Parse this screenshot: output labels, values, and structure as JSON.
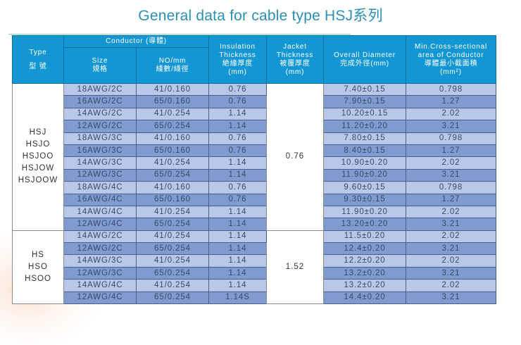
{
  "title": "General data for cable type HSJ系列",
  "colors": {
    "title": "#2d8fb6",
    "header_bg": "#1296d4",
    "row_light": "#b9c8e8",
    "row_dark": "#7f9bd0"
  },
  "header": {
    "type_en": "Type",
    "type_zh": "型 號",
    "conductor": "Conductor (導體)",
    "size_en": "Size",
    "size_zh": "規格",
    "nomm_en": "NO/mm",
    "nomm_zh": "綫數/綫徑",
    "insulation_l1": "Insulation",
    "insulation_l2": "Thickness",
    "insulation_l3": "絶緣厚度",
    "insulation_l4": "(mm)",
    "jacket_l1": "Jacket",
    "jacket_l2": "Thickness",
    "jacket_l3": "被覆厚度",
    "jacket_l4": "(mm)",
    "diameter_l1": "Overall Diameter",
    "diameter_l2": "完成外徑(mm)",
    "cross_l1": "Min.Cross-sectional",
    "cross_l2": "area of Conductor",
    "cross_l3": "導體最小截面積",
    "cross_l4": "(mm²)"
  },
  "groups": [
    {
      "types": [
        "HSJ",
        "HSJO",
        "HSJOO",
        "HSJOW",
        "HSJOOW"
      ],
      "jacket": "0.76",
      "rows": [
        {
          "size": "18AWG/2C",
          "nomm": "41/0.160",
          "insulation": "0.76",
          "diameter": "7.40±0.15",
          "area": "0.798"
        },
        {
          "size": "16AWG/2C",
          "nomm": "65/0.160",
          "insulation": "0.76",
          "diameter": "7.90±0.15",
          "area": "1.27"
        },
        {
          "size": "14AWG/2C",
          "nomm": "41/0.254",
          "insulation": "1.14",
          "diameter": "10.20±0.15",
          "area": "2.02"
        },
        {
          "size": "12AWG/2C",
          "nomm": "65/0.254",
          "insulation": "1.14",
          "diameter": "11.20±0.20",
          "area": "3.21"
        },
        {
          "size": "18AWG/3C",
          "nomm": "41/0.160",
          "insulation": "0.76",
          "diameter": "7.80±0.15",
          "area": "0.798"
        },
        {
          "size": "16AWG/3C",
          "nomm": "65/0.160",
          "insulation": "0.76",
          "diameter": "8.40±0.15",
          "area": "1.27"
        },
        {
          "size": "14AWG/3C",
          "nomm": "41/0.254",
          "insulation": "1.14",
          "diameter": "10.90±0.20",
          "area": "2.02"
        },
        {
          "size": "12AWG/3C",
          "nomm": "65/0.254",
          "insulation": "1.14",
          "diameter": "11.90±0.20",
          "area": "3.21"
        },
        {
          "size": "18AWG/4C",
          "nomm": "41/0.160",
          "insulation": "0.76",
          "diameter": "9.60±0.15",
          "area": "0.798"
        },
        {
          "size": "16AWG/4C",
          "nomm": "65/0.160",
          "insulation": "0.76",
          "diameter": "9.30±0.15",
          "area": "1.27"
        },
        {
          "size": "14AWG/4C",
          "nomm": "41/0.254",
          "insulation": "1.14",
          "diameter": "11.90±0.20",
          "area": "2.02"
        },
        {
          "size": "12AWG/4C",
          "nomm": "65/0.254",
          "insulation": "1.14",
          "diameter": "13.20±0.20",
          "area": "3.21"
        }
      ]
    },
    {
      "types": [
        "HS",
        "HSO",
        "HSOO"
      ],
      "jacket": "1.52",
      "rows": [
        {
          "size": "14AWG/2C",
          "nomm": "41/0.254",
          "insulation": "1.14",
          "diameter": "11.5±0.20",
          "area": "2.02"
        },
        {
          "size": "12AWG/2C",
          "nomm": "65/0.254",
          "insulation": "1.14",
          "diameter": "12.4±0.20",
          "area": "3.21"
        },
        {
          "size": "14AWG/3C",
          "nomm": "41/0.254",
          "insulation": "1.14",
          "diameter": "12.2±0.20",
          "area": "2.02"
        },
        {
          "size": "12AWG/3C",
          "nomm": "65/0.254",
          "insulation": "1.14",
          "diameter": "13.2±0.20",
          "area": "3.21"
        },
        {
          "size": "14AWG/4C",
          "nomm": "41/0.254",
          "insulation": "1.14",
          "diameter": "13.2±0.20",
          "area": "2.02"
        },
        {
          "size": "12AWG/4C",
          "nomm": "65/0.254",
          "insulation": "1.14S",
          "diameter": "14.4±0.20",
          "area": "3.21"
        }
      ]
    }
  ]
}
